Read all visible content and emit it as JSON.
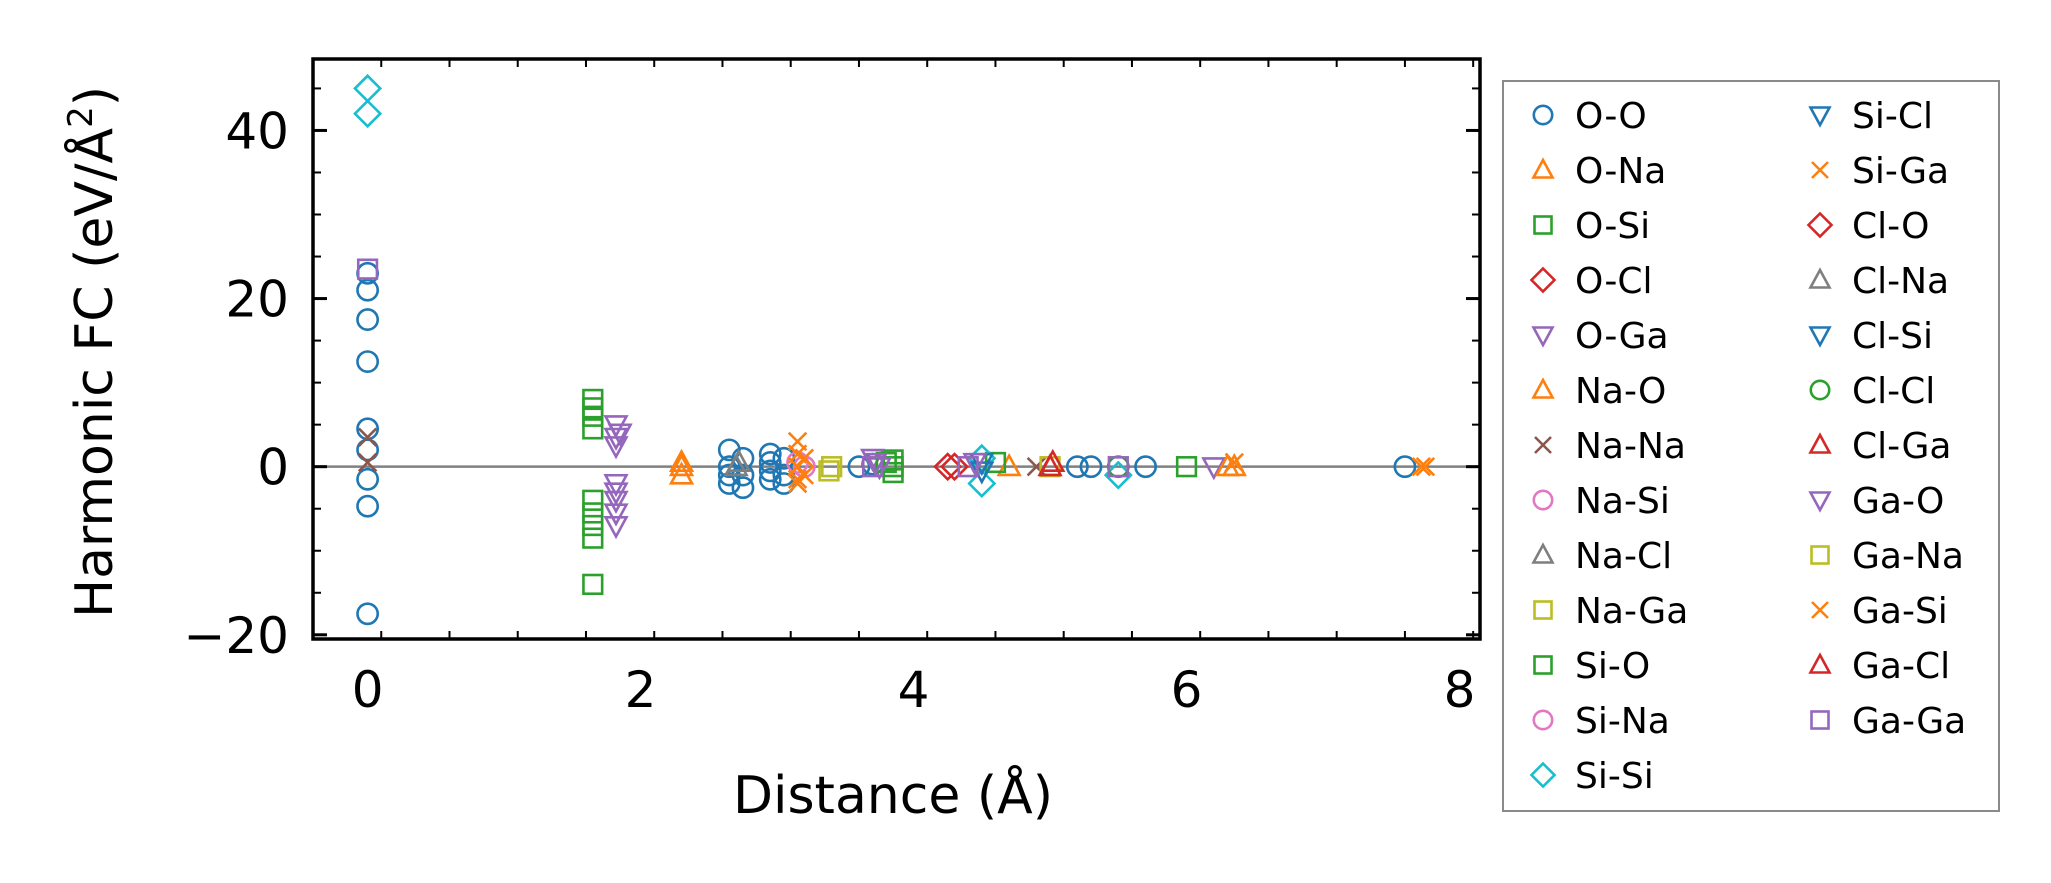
{
  "chart_data": {
    "type": "scatter",
    "title": "",
    "xlabel": "Distance (Å)",
    "ylabel_parts": [
      "Harmonic FC (eV/Å",
      "2",
      ")"
    ],
    "xlim": [
      -0.4,
      8.15
    ],
    "ylim": [
      -20.5,
      48.5
    ],
    "xticks": [
      0,
      2,
      4,
      6,
      8
    ],
    "xtick_labels": [
      "0",
      "2",
      "4",
      "6",
      "8"
    ],
    "yticks": [
      -20,
      0,
      20,
      40
    ],
    "ytick_labels": [
      "−20",
      "0",
      "20",
      "40"
    ],
    "zero_line": true,
    "grid": false,
    "legend_location": "outside right",
    "series": [
      {
        "name": "O-O",
        "marker": "circle",
        "color": "#1f77b4",
        "points": [
          [
            0,
            21
          ],
          [
            0,
            17.5
          ],
          [
            0,
            12.5
          ],
          [
            0,
            4.5
          ],
          [
            0,
            2
          ],
          [
            0,
            -1.5
          ],
          [
            0,
            -4.7
          ],
          [
            0,
            -17.5
          ],
          [
            0,
            23
          ],
          [
            2.65,
            2
          ],
          [
            2.65,
            0
          ],
          [
            2.65,
            -1
          ],
          [
            2.65,
            -2
          ],
          [
            2.75,
            1
          ],
          [
            2.75,
            -1
          ],
          [
            2.75,
            -2.5
          ],
          [
            2.95,
            1.5
          ],
          [
            2.95,
            0.5
          ],
          [
            2.95,
            -0.5
          ],
          [
            2.95,
            -1.5
          ],
          [
            3.05,
            1
          ],
          [
            3.05,
            -1
          ],
          [
            3.05,
            -2
          ],
          [
            3.6,
            0
          ],
          [
            3.7,
            0.3
          ],
          [
            5.2,
            0
          ],
          [
            5.3,
            0
          ],
          [
            5.7,
            0
          ],
          [
            7.6,
            0
          ]
        ]
      },
      {
        "name": "O-Na",
        "marker": "triangle-up",
        "color": "#ff7f0e",
        "points": [
          [
            2.3,
            -1
          ],
          [
            2.3,
            0
          ],
          [
            4.7,
            0
          ],
          [
            6.35,
            0
          ]
        ]
      },
      {
        "name": "O-Si",
        "marker": "square",
        "color": "#2ca02c",
        "points": [
          [
            1.65,
            8
          ],
          [
            1.65,
            6
          ],
          [
            1.65,
            4.5
          ],
          [
            1.65,
            -4
          ],
          [
            1.65,
            -5.5
          ],
          [
            1.65,
            -7
          ],
          [
            1.65,
            -8.5
          ],
          [
            1.65,
            -14
          ],
          [
            3.85,
            0.8
          ],
          [
            3.85,
            0
          ],
          [
            3.85,
            -0.7
          ],
          [
            6.0,
            0
          ]
        ]
      },
      {
        "name": "O-Cl",
        "marker": "diamond",
        "color": "#d62728",
        "points": [
          [
            4.25,
            0
          ]
        ]
      },
      {
        "name": "O-Ga",
        "marker": "triangle-down",
        "color": "#9467bd",
        "points": [
          [
            1.82,
            5
          ],
          [
            1.82,
            3.5
          ],
          [
            1.82,
            2.5
          ],
          [
            1.82,
            -2
          ],
          [
            1.82,
            -3
          ],
          [
            1.82,
            -4
          ],
          [
            1.82,
            -5.5
          ],
          [
            1.82,
            -7
          ],
          [
            3.7,
            1
          ],
          [
            3.75,
            0
          ],
          [
            6.2,
            0
          ]
        ]
      },
      {
        "name": "Na-O",
        "marker": "triangle-up",
        "color": "#ff7f0e",
        "points": [
          [
            2.3,
            0.5
          ],
          [
            6.3,
            0
          ]
        ]
      },
      {
        "name": "Na-Na",
        "marker": "x",
        "color": "#8c564b",
        "points": [
          [
            0,
            3.5
          ],
          [
            0,
            0.5
          ],
          [
            4.9,
            0
          ]
        ]
      },
      {
        "name": "Na-Si",
        "marker": "circle",
        "color": "#e377c2",
        "points": [
          [
            3.2,
            0
          ]
        ]
      },
      {
        "name": "Na-Cl",
        "marker": "triangle-up",
        "color": "#7f7f7f",
        "points": [
          [
            2.7,
            0
          ]
        ]
      },
      {
        "name": "Na-Ga",
        "marker": "square",
        "color": "#bcbd22",
        "points": [
          [
            3.4,
            0
          ],
          [
            5.0,
            0
          ]
        ]
      },
      {
        "name": "Si-O",
        "marker": "square",
        "color": "#2ca02c",
        "points": [
          [
            1.65,
            7
          ],
          [
            3.8,
            0.5
          ],
          [
            4.6,
            0.5
          ]
        ]
      },
      {
        "name": "Si-Na",
        "marker": "circle",
        "color": "#e377c2",
        "points": [
          [
            3.15,
            0.5
          ]
        ]
      },
      {
        "name": "Si-Si",
        "marker": "diamond",
        "color": "#17becf",
        "points": [
          [
            0,
            45
          ],
          [
            0,
            42
          ],
          [
            4.5,
            1
          ],
          [
            4.5,
            -2
          ],
          [
            5.5,
            -1
          ]
        ]
      },
      {
        "name": "Si-Cl",
        "marker": "triangle-down",
        "color": "#1f77b4",
        "points": [
          [
            4.5,
            0.5
          ]
        ]
      },
      {
        "name": "Si-Ga",
        "marker": "x",
        "color": "#ff7f0e",
        "points": [
          [
            3.15,
            3
          ],
          [
            3.15,
            1.5
          ],
          [
            3.15,
            0
          ],
          [
            3.15,
            -1.5
          ],
          [
            3.15,
            -2
          ],
          [
            6.35,
            0.5
          ],
          [
            7.75,
            0
          ]
        ]
      },
      {
        "name": "Cl-O",
        "marker": "diamond",
        "color": "#d62728",
        "points": [
          [
            4.3,
            0
          ]
        ]
      },
      {
        "name": "Cl-Na",
        "marker": "triangle-up",
        "color": "#7f7f7f",
        "points": [
          [
            2.72,
            0.5
          ]
        ]
      },
      {
        "name": "Cl-Si",
        "marker": "triangle-down",
        "color": "#1f77b4",
        "points": [
          [
            4.5,
            -0.5
          ]
        ]
      },
      {
        "name": "Cl-Cl",
        "marker": "circle",
        "color": "#2ca02c",
        "points": [
          [
            5.5,
            0
          ]
        ]
      },
      {
        "name": "Cl-Ga",
        "marker": "triangle-up",
        "color": "#d62728",
        "points": [
          [
            5.0,
            0
          ]
        ]
      },
      {
        "name": "Ga-O",
        "marker": "triangle-down",
        "color": "#9467bd",
        "points": [
          [
            1.85,
            4
          ],
          [
            3.72,
            0.5
          ],
          [
            4.45,
            0.5
          ]
        ]
      },
      {
        "name": "Ga-Na",
        "marker": "square",
        "color": "#bcbd22",
        "points": [
          [
            3.38,
            -0.5
          ]
        ]
      },
      {
        "name": "Ga-Si",
        "marker": "x",
        "color": "#ff7f0e",
        "points": [
          [
            3.2,
            1
          ],
          [
            3.2,
            -1
          ],
          [
            7.72,
            0
          ]
        ]
      },
      {
        "name": "Ga-Cl",
        "marker": "triangle-up",
        "color": "#d62728",
        "points": [
          [
            5.02,
            0.5
          ]
        ]
      },
      {
        "name": "Ga-Ga",
        "marker": "square",
        "color": "#9467bd",
        "points": [
          [
            0,
            23.5
          ],
          [
            3.7,
            0
          ],
          [
            4.4,
            0
          ],
          [
            5.5,
            0
          ]
        ]
      }
    ]
  }
}
